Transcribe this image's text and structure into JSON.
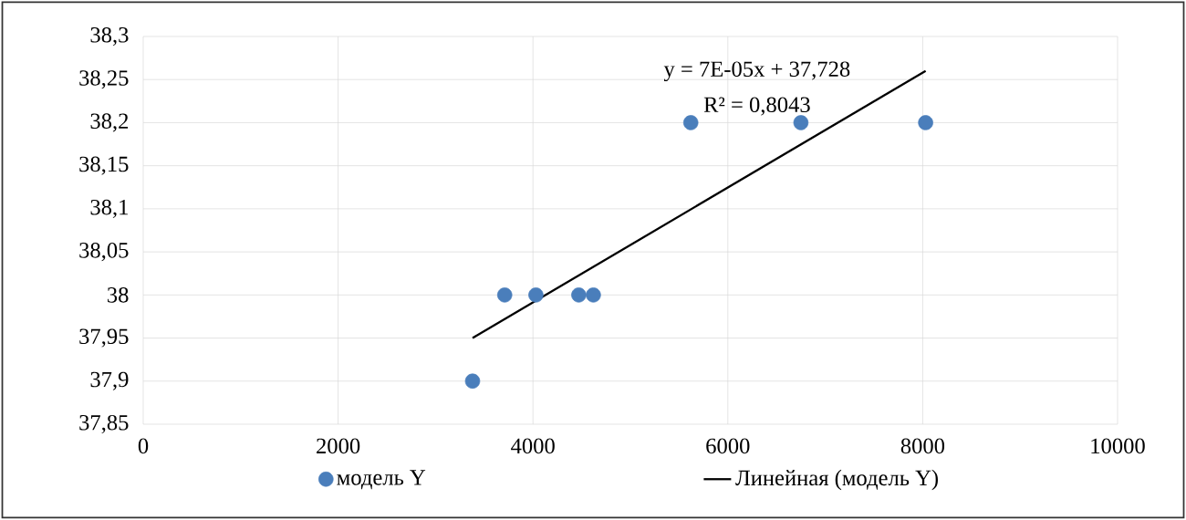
{
  "chart_data": {
    "type": "scatter",
    "xlim": [
      0,
      10000
    ],
    "ylim": [
      37.85,
      38.3
    ],
    "xticks": [
      0,
      2000,
      4000,
      6000,
      8000,
      10000
    ],
    "yticks": [
      {
        "value": 37.85,
        "label": "37,85"
      },
      {
        "value": 37.9,
        "label": "37,9"
      },
      {
        "value": 37.95,
        "label": "37,95"
      },
      {
        "value": 38,
        "label": "38"
      },
      {
        "value": 38.05,
        "label": "38,05"
      },
      {
        "value": 38.1,
        "label": "38,1"
      },
      {
        "value": 38.15,
        "label": "38,15"
      },
      {
        "value": 38.2,
        "label": "38,2"
      },
      {
        "value": 38.25,
        "label": "38,25"
      },
      {
        "value": 38.3,
        "label": "38,3"
      }
    ],
    "grid": true,
    "legend": "bottom",
    "series": [
      {
        "name": "модель Y",
        "marker": "circle",
        "color": "#4a7ebb",
        "x": [
          3380,
          3710,
          4030,
          4470,
          4620,
          5620,
          6750,
          8030
        ],
        "values": [
          37.9,
          38,
          38,
          38,
          38,
          38.2,
          38.2,
          38.2
        ]
      },
      {
        "name": "Линейная (модель Y)",
        "type": "line",
        "marker": "none",
        "color": "#000000",
        "x": [
          3380,
          8030
        ],
        "values": [
          37.95,
          38.26
        ]
      }
    ],
    "annotations": [
      "y = 7E-05x + 37,728",
      "R² = 0,8043"
    ]
  }
}
